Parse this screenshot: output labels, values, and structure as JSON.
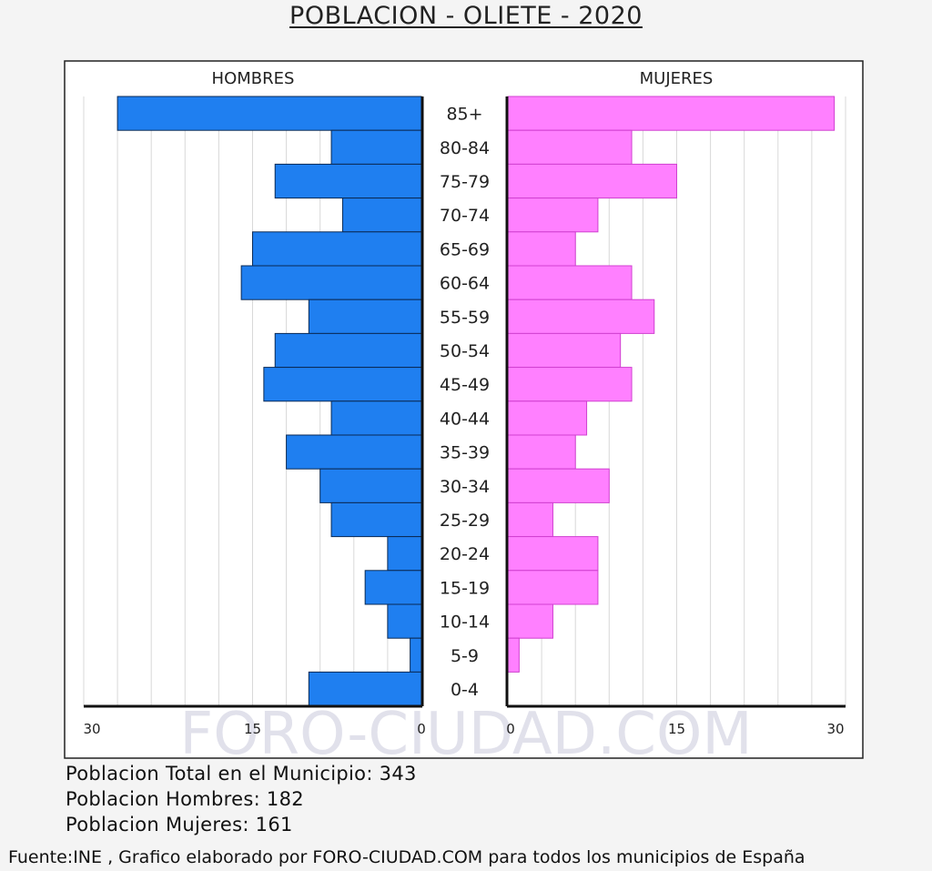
{
  "chart_data": {
    "type": "bar",
    "title": "POBLACION - OLIETE - 2020",
    "left_label": "HOMBRES",
    "right_label": "MUJERES",
    "categories": [
      "85+",
      "80-84",
      "75-79",
      "70-74",
      "65-69",
      "60-64",
      "55-59",
      "50-54",
      "45-49",
      "40-44",
      "35-39",
      "30-34",
      "25-29",
      "20-24",
      "15-19",
      "10-14",
      "5-9",
      "0-4"
    ],
    "series": [
      {
        "name": "HOMBRES",
        "color": "#1f7ff0",
        "values": [
          27,
          8,
          13,
          7,
          15,
          16,
          10,
          13,
          14,
          8,
          12,
          9,
          8,
          3,
          5,
          3,
          1,
          10
        ]
      },
      {
        "name": "MUJERES",
        "color": "#ff80ff",
        "values": [
          29,
          11,
          15,
          8,
          6,
          11,
          13,
          10,
          11,
          7,
          6,
          9,
          4,
          8,
          8,
          4,
          1,
          0
        ]
      }
    ],
    "xlim": [
      0,
      30
    ],
    "x_ticks_left": [
      "30",
      "15",
      "0"
    ],
    "x_ticks_right": [
      "0",
      "15",
      "30"
    ],
    "grid": true
  },
  "watermark": "FORO-CIUDAD.COM",
  "summary": {
    "total": "Poblacion Total en el Municipio: 343",
    "hombres": "Poblacion Hombres: 182",
    "mujeres": "Poblacion Mujeres: 161"
  },
  "footer": "Fuente:INE , Grafico elaborado por FORO-CIUDAD.COM para todos los municipios de España"
}
